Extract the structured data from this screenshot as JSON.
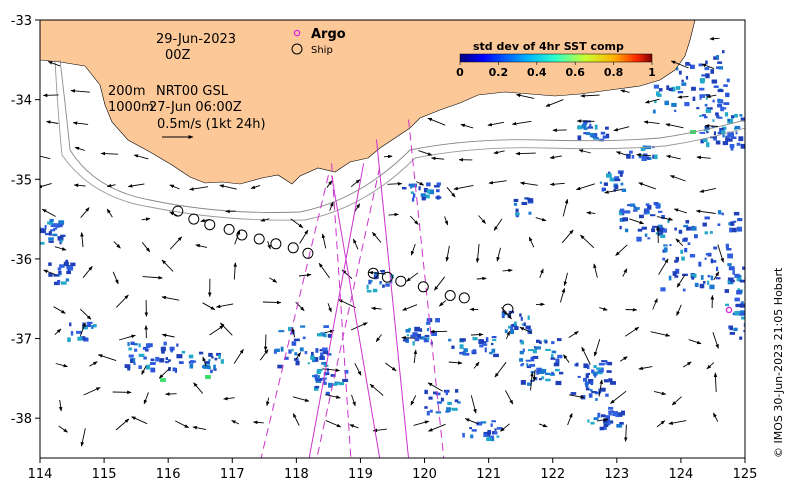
{
  "map": {
    "lon_range": [
      114,
      125
    ],
    "lat_range": [
      -38.5,
      -33
    ],
    "x_ticks": [
      114,
      115,
      116,
      117,
      118,
      119,
      120,
      121,
      122,
      123,
      124,
      125
    ],
    "y_ticks": [
      -33,
      -34,
      -35,
      -36,
      -37,
      -38
    ],
    "x_tick_labels": [
      "114",
      "115",
      "116",
      "117",
      "118",
      "119",
      "120",
      "121",
      "122",
      "123",
      "124",
      "125"
    ],
    "y_tick_labels": [
      "-33",
      "-34",
      "-35",
      "-36",
      "-37",
      "-38"
    ]
  },
  "header": {
    "date": "29-Jun-2023",
    "hour": "00Z",
    "depth_200": "200m",
    "product": "NRT00 GSL",
    "depth_1000": "1000m",
    "analysis_time": "27-Jun 06:00Z",
    "scale_label": "0.5m/s (1kt 24h)"
  },
  "legend": {
    "argo": "Argo",
    "ship": "Ship",
    "argo_color": "#e020e0"
  },
  "colorbar": {
    "title": "std dev of 4hr SST comp",
    "ticks": [
      "0",
      "0.2",
      "0.4",
      "0.6",
      "0.8",
      "1"
    ]
  },
  "credit": "© IMOS 30-Jun-2023 21:05 Hobart",
  "colors": {
    "land": "#fdc898",
    "ocean": "#ffffff",
    "sst_patch": "#2a4fc8",
    "track": "#cc33cc"
  },
  "ship_positions": [
    {
      "lon": 116.15,
      "lat": -35.4
    },
    {
      "lon": 116.4,
      "lat": -35.5
    },
    {
      "lon": 116.65,
      "lat": -35.57
    },
    {
      "lon": 116.95,
      "lat": -35.63
    },
    {
      "lon": 117.15,
      "lat": -35.7
    },
    {
      "lon": 117.42,
      "lat": -35.75
    },
    {
      "lon": 117.68,
      "lat": -35.81
    },
    {
      "lon": 117.95,
      "lat": -35.86
    },
    {
      "lon": 118.18,
      "lat": -35.93
    },
    {
      "lon": 119.2,
      "lat": -36.18
    },
    {
      "lon": 119.42,
      "lat": -36.23
    },
    {
      "lon": 119.63,
      "lat": -36.28
    },
    {
      "lon": 119.98,
      "lat": -36.35
    },
    {
      "lon": 120.4,
      "lat": -36.46
    },
    {
      "lon": 120.62,
      "lat": -36.49
    },
    {
      "lon": 121.3,
      "lat": -36.63
    }
  ],
  "argo_positions": [
    {
      "lon": 124.75,
      "lat": -36.64
    }
  ],
  "swaths": [
    {
      "style": "dashed",
      "pts": [
        [
          118.5,
          -34.95
        ],
        [
          117.45,
          -38.5
        ]
      ]
    },
    {
      "style": "dashed",
      "pts": [
        [
          119.3,
          -34.85
        ],
        [
          118.32,
          -38.5
        ]
      ]
    },
    {
      "style": "solid",
      "pts": [
        [
          118.55,
          -34.95
        ],
        [
          119.3,
          -38.5
        ]
      ]
    },
    {
      "style": "solid",
      "pts": [
        [
          119.05,
          -34.8
        ],
        [
          118.2,
          -38.5
        ]
      ]
    },
    {
      "style": "solid",
      "pts": [
        [
          119.25,
          -34.5
        ],
        [
          119.75,
          -38.5
        ]
      ]
    },
    {
      "style": "dashed",
      "pts": [
        [
          119.75,
          -34.25
        ],
        [
          120.3,
          -38.5
        ]
      ]
    },
    {
      "style": "dashed",
      "pts": [
        [
          118.55,
          -34.8
        ],
        [
          118.85,
          -38.5
        ]
      ]
    }
  ]
}
